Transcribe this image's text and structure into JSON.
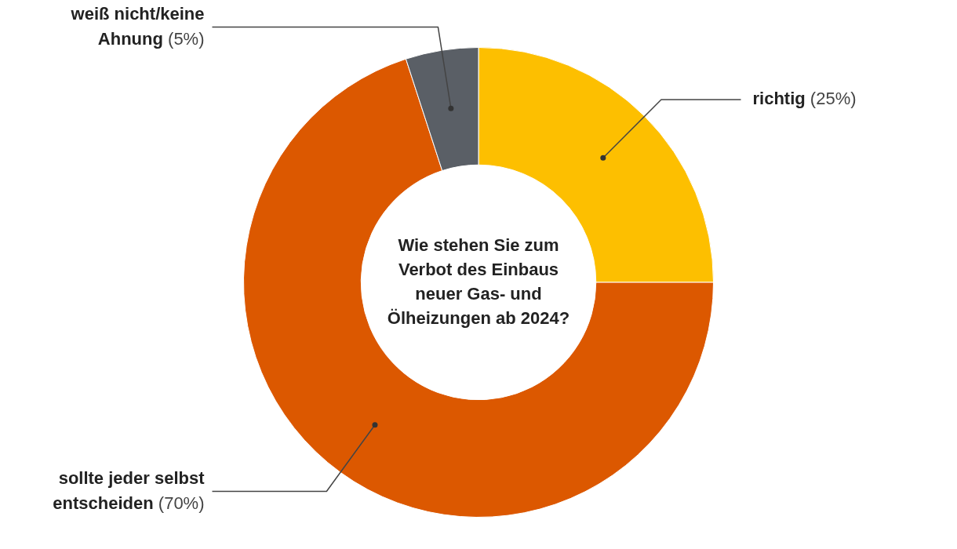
{
  "chart_data": {
    "type": "donut",
    "title": "Wie stehen Sie zum Verbot des Einbaus neuer Gas- und Ölheizungen ab 2024?",
    "categories": [
      "richtig",
      "sollte jeder selbst entscheiden",
      "weiß nicht/keine Ahnung"
    ],
    "values": [
      25,
      70,
      5
    ],
    "value_labels": [
      "(25%)",
      "(70%)",
      "(5%)"
    ],
    "colors": [
      "#fdbf00",
      "#dc5800",
      "#5a5f66"
    ],
    "legend": false
  }
}
